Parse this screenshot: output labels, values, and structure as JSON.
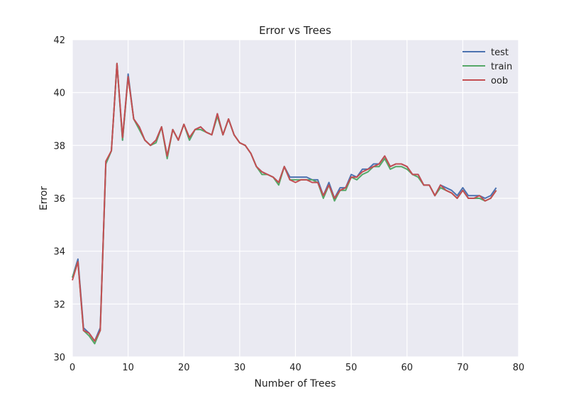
{
  "chart_data": {
    "type": "line",
    "title": "Error vs Trees",
    "xlabel": "Number of Trees",
    "ylabel": "Error",
    "xlim": [
      0,
      80
    ],
    "ylim": [
      30,
      42
    ],
    "xticks": [
      "0",
      "10",
      "20",
      "30",
      "40",
      "50",
      "60",
      "70",
      "80"
    ],
    "yticks": [
      "30",
      "32",
      "34",
      "36",
      "38",
      "40",
      "42"
    ],
    "grid": true,
    "legend_position": "top-right",
    "x": [
      0,
      1,
      2,
      3,
      4,
      5,
      6,
      7,
      8,
      9,
      10,
      11,
      12,
      13,
      14,
      15,
      16,
      17,
      18,
      19,
      20,
      21,
      22,
      23,
      24,
      25,
      26,
      27,
      28,
      29,
      30,
      31,
      32,
      33,
      34,
      35,
      36,
      37,
      38,
      39,
      40,
      41,
      42,
      43,
      44,
      45,
      46,
      47,
      48,
      49,
      50,
      51,
      52,
      53,
      54,
      55,
      56,
      57,
      58,
      59,
      60,
      61,
      62,
      63,
      64,
      65,
      66,
      67,
      68,
      69,
      70,
      71,
      72,
      73,
      74,
      75,
      76
    ],
    "series": [
      {
        "name": "test",
        "color": "#4c72b0",
        "values": [
          33.0,
          33.7,
          31.1,
          30.9,
          30.6,
          31.1,
          37.3,
          37.8,
          41.1,
          38.2,
          40.7,
          39.0,
          38.7,
          38.2,
          38.0,
          38.2,
          38.7,
          37.6,
          38.6,
          38.2,
          38.8,
          38.2,
          38.6,
          38.7,
          38.5,
          38.4,
          39.2,
          38.4,
          39.0,
          38.4,
          38.1,
          38.0,
          37.7,
          37.2,
          37.0,
          36.9,
          36.8,
          36.6,
          37.2,
          36.8,
          36.8,
          36.8,
          36.8,
          36.7,
          36.7,
          36.1,
          36.6,
          36.0,
          36.4,
          36.4,
          36.9,
          36.8,
          37.1,
          37.1,
          37.3,
          37.3,
          37.6,
          37.2,
          37.3,
          37.3,
          37.2,
          36.9,
          36.9,
          36.5,
          36.5,
          36.1,
          36.5,
          36.4,
          36.3,
          36.1,
          36.4,
          36.1,
          36.1,
          36.1,
          36.0,
          36.1,
          36.4
        ]
      },
      {
        "name": "train",
        "color": "#55a868",
        "values": [
          33.0,
          33.6,
          31.0,
          30.8,
          30.5,
          31.0,
          37.3,
          37.8,
          41.1,
          38.2,
          40.6,
          39.0,
          38.6,
          38.2,
          38.0,
          38.1,
          38.7,
          37.5,
          38.6,
          38.2,
          38.8,
          38.2,
          38.6,
          38.6,
          38.5,
          38.4,
          39.1,
          38.4,
          39.0,
          38.4,
          38.1,
          38.0,
          37.7,
          37.2,
          36.9,
          36.9,
          36.8,
          36.5,
          37.2,
          36.7,
          36.7,
          36.7,
          36.7,
          36.7,
          36.6,
          36.0,
          36.5,
          35.9,
          36.3,
          36.3,
          36.8,
          36.7,
          36.9,
          37.0,
          37.2,
          37.2,
          37.5,
          37.1,
          37.2,
          37.2,
          37.1,
          36.9,
          36.8,
          36.5,
          36.5,
          36.1,
          36.4,
          36.3,
          36.2,
          36.0,
          36.3,
          36.0,
          36.0,
          36.0,
          35.9,
          36.0,
          36.3
        ]
      },
      {
        "name": "oob",
        "color": "#c44e52",
        "values": [
          32.9,
          33.6,
          31.0,
          30.9,
          30.6,
          31.0,
          37.4,
          37.8,
          41.1,
          38.3,
          40.6,
          39.0,
          38.7,
          38.2,
          38.0,
          38.2,
          38.7,
          37.6,
          38.6,
          38.2,
          38.8,
          38.3,
          38.6,
          38.7,
          38.5,
          38.4,
          39.2,
          38.4,
          39.0,
          38.4,
          38.1,
          38.0,
          37.7,
          37.2,
          37.0,
          36.9,
          36.8,
          36.6,
          37.2,
          36.7,
          36.6,
          36.7,
          36.7,
          36.6,
          36.6,
          36.1,
          36.5,
          36.0,
          36.3,
          36.4,
          36.8,
          36.8,
          37.0,
          37.1,
          37.2,
          37.3,
          37.6,
          37.2,
          37.3,
          37.3,
          37.2,
          36.9,
          36.9,
          36.5,
          36.5,
          36.1,
          36.5,
          36.3,
          36.2,
          36.0,
          36.3,
          36.0,
          36.0,
          36.1,
          35.9,
          36.0,
          36.3
        ]
      }
    ]
  }
}
